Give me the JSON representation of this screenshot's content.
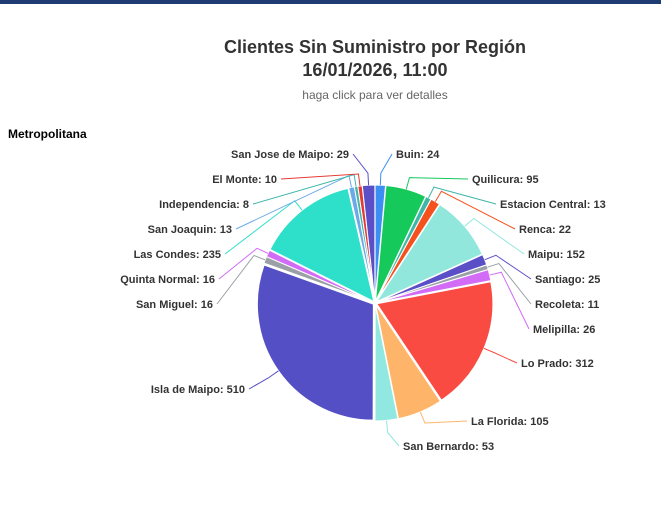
{
  "header": {
    "title_line1": "Clientes Sin Suministro por Región",
    "title_line2": "16/01/2026, 11:00",
    "subtitle": "haga click para ver detalles"
  },
  "region": "Metropolitana",
  "chart_data": {
    "type": "pie",
    "title": "Clientes Sin Suministro por Región 16/01/2026, 11:00",
    "subtitle": "haga click para ver detalles",
    "slices": [
      {
        "name": "Buin",
        "value": 24,
        "color": "#3b8ff3"
      },
      {
        "name": "Quilicura",
        "value": 95,
        "color": "#15c95a"
      },
      {
        "name": "Estacion Central",
        "value": 13,
        "color": "#3fb6a8"
      },
      {
        "name": "Renca",
        "value": 22,
        "color": "#f4511e"
      },
      {
        "name": "Maipu",
        "value": 152,
        "color": "#92e7dd"
      },
      {
        "name": "Santiago",
        "value": 25,
        "color": "#5b4fc7"
      },
      {
        "name": "Recoleta",
        "value": 11,
        "color": "#9aa0a6"
      },
      {
        "name": "Melipilla",
        "value": 26,
        "color": "#d26cf6"
      },
      {
        "name": "Lo Prado",
        "value": 312,
        "color": "#fa4b42"
      },
      {
        "name": "La Florida",
        "value": 105,
        "color": "#feb56a"
      },
      {
        "name": "San Bernardo",
        "value": 53,
        "color": "#91e8e1"
      },
      {
        "name": "Isla de Maipo",
        "value": 510,
        "color": "#544fc5"
      },
      {
        "name": "San Miguel",
        "value": 16,
        "color": "#9aa0a6"
      },
      {
        "name": "Quinta Normal",
        "value": 16,
        "color": "#d26cf6"
      },
      {
        "name": "Las Condes",
        "value": 235,
        "color": "#2ee0ca"
      },
      {
        "name": "San Joaquin",
        "value": 13,
        "color": "#6ca9e8"
      },
      {
        "name": "Independencia",
        "value": 8,
        "color": "#3fb6a8"
      },
      {
        "name": "El Monte",
        "value": 10,
        "color": "#e53935"
      },
      {
        "name": "San Jose de Maipo",
        "value": 29,
        "color": "#5b4fc7"
      }
    ]
  }
}
